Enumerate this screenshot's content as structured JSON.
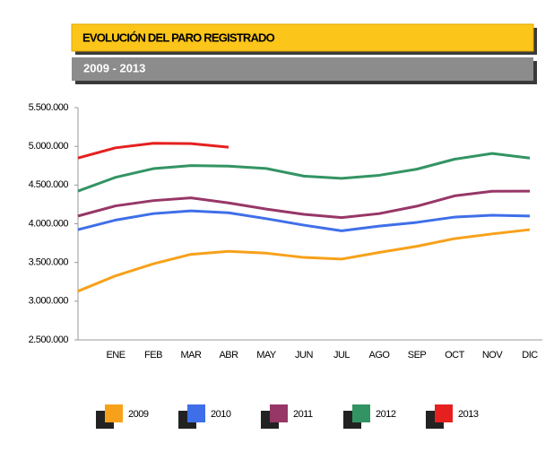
{
  "chart_data": {
    "type": "line",
    "title": "EVOLUCIÓN DEL PARO REGISTRADO",
    "subtitle": "2009 - 2013",
    "categories": [
      null,
      "ENE",
      "FEB",
      "MAR",
      "ABR",
      "MAY",
      "JUN",
      "JUL",
      "AGO",
      "SEP",
      "OCT",
      "NOV",
      "DIC"
    ],
    "series": [
      {
        "name": "2009",
        "color": "#f7a11a",
        "values": [
          3129000,
          3328000,
          3482000,
          3605000,
          3644000,
          3620000,
          3565000,
          3544000,
          3629000,
          3709000,
          3808000,
          3869000,
          3924000
        ]
      },
      {
        "name": "2010",
        "color": "#3f6fe8",
        "values": [
          3924000,
          4048000,
          4131000,
          4167000,
          4142000,
          4066000,
          3982000,
          3909000,
          3970000,
          4018000,
          4086000,
          4110000,
          4100000
        ]
      },
      {
        "name": "2011",
        "color": "#973767",
        "values": [
          4100000,
          4231000,
          4299000,
          4334000,
          4269000,
          4190000,
          4122000,
          4080000,
          4131000,
          4227000,
          4360000,
          4420000,
          4422000
        ]
      },
      {
        "name": "2012",
        "color": "#339463",
        "values": [
          4422000,
          4600000,
          4712000,
          4751000,
          4744000,
          4714000,
          4615000,
          4587000,
          4626000,
          4705000,
          4834000,
          4908000,
          4849000
        ]
      },
      {
        "name": "2013",
        "color": "#e5201f",
        "values": [
          4849000,
          4981000,
          5040000,
          5035000,
          4989000,
          null,
          null,
          null,
          null,
          null,
          null,
          null,
          null
        ]
      }
    ],
    "ylim": [
      2500000,
      5500000
    ],
    "yticks": [
      {
        "value": 2500000,
        "label": "2.500.000"
      },
      {
        "value": 3000000,
        "label": "3.000.000"
      },
      {
        "value": 3500000,
        "label": "3.500.000"
      },
      {
        "value": 4000000,
        "label": "4.000.000"
      },
      {
        "value": 4500000,
        "label": "4.500.000"
      },
      {
        "value": 5000000,
        "label": "5.000.000"
      },
      {
        "value": 5500000,
        "label": "5.500.000"
      }
    ],
    "grid": false
  }
}
